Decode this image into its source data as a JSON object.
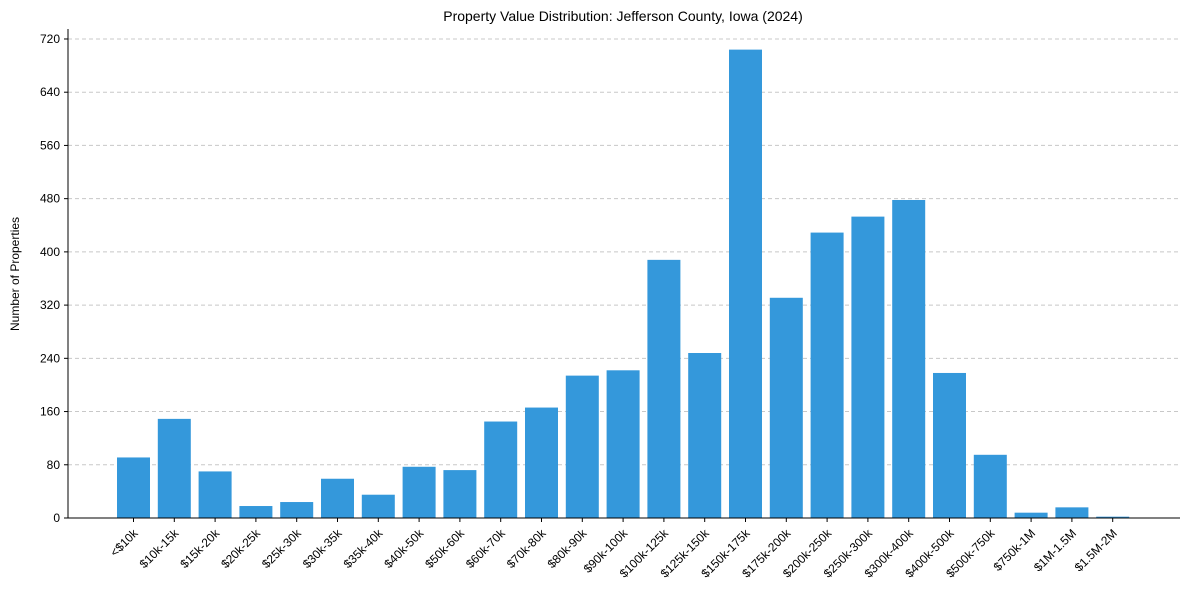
{
  "chart_data": {
    "type": "bar",
    "title": "Property Value Distribution: Jefferson County, Iowa (2024)",
    "xlabel": "",
    "ylabel": "Number of Properties",
    "ylim": [
      0,
      735
    ],
    "yticks": [
      0,
      80,
      160,
      240,
      320,
      400,
      480,
      560,
      640,
      720
    ],
    "grid": "y-dashed",
    "bar_color": "#3498db",
    "categories": [
      "<$10k",
      "$10k-15k",
      "$15k-20k",
      "$20k-25k",
      "$25k-30k",
      "$30k-35k",
      "$35k-40k",
      "$40k-50k",
      "$50k-60k",
      "$60k-70k",
      "$70k-80k",
      "$80k-90k",
      "$90k-100k",
      "$100k-125k",
      "$125k-150k",
      "$150k-175k",
      "$175k-200k",
      "$200k-250k",
      "$250k-300k",
      "$300k-400k",
      "$400k-500k",
      "$500k-750k",
      "$750k-1M",
      "$1M-1.5M",
      "$1.5M-2M"
    ],
    "values": [
      91,
      149,
      70,
      18,
      24,
      59,
      35,
      77,
      72,
      145,
      166,
      214,
      222,
      388,
      248,
      704,
      331,
      429,
      453,
      478,
      218,
      95,
      8,
      16,
      2
    ]
  }
}
